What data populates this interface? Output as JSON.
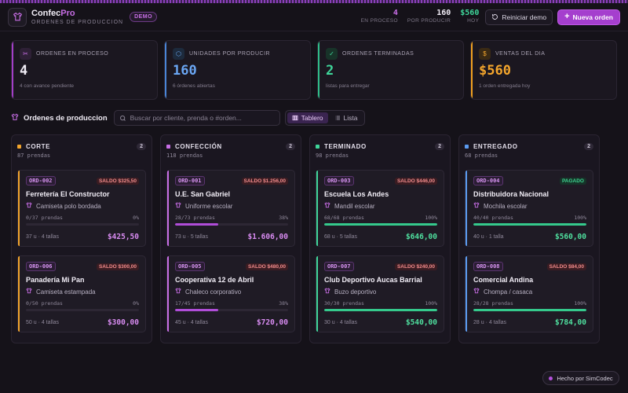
{
  "colors": {
    "accent": "#a53fce",
    "blue": "#5b9bf0",
    "green": "#3fd69a",
    "orange": "#f3a52c",
    "red": "#f08b8b"
  },
  "brand": {
    "name_a": "Confec",
    "name_b": "Pro",
    "subtitle": "ORDENES DE PRODUCCION",
    "badge": "DEMO"
  },
  "header_stats": [
    {
      "value": "4",
      "label": "EN PROCESO",
      "color": "#c86ee6"
    },
    {
      "value": "160",
      "label": "POR PRODUCIR",
      "color": "#f0ecf5"
    },
    {
      "value": "$560",
      "label": "HOY",
      "color": "#3fd69a"
    }
  ],
  "actions": {
    "reset": "Reiniciar demo",
    "new_order": "Nueva orden"
  },
  "kpis": [
    {
      "title": "ORDENES EN PROCESO",
      "value": "4",
      "sub": "4 con avance pendiente",
      "icon": "scissors-icon",
      "glyph": "✂",
      "color": "#f0ecf5",
      "iconbg": "#2e2036",
      "iconcolor": "#c86ee6"
    },
    {
      "title": "UNIDADES POR PRODUCIR",
      "value": "160",
      "sub": "6 órdenes abiertas",
      "icon": "box-icon",
      "glyph": "⬡",
      "color": "#6aa6f3",
      "iconbg": "#1d2a3c",
      "iconcolor": "#6aa6f3"
    },
    {
      "title": "ORDENES TERMINADAS",
      "value": "2",
      "sub": "listas para entregar",
      "icon": "check-circle-icon",
      "glyph": "✓",
      "color": "#3fd69a",
      "iconbg": "#183329",
      "iconcolor": "#3fd69a"
    },
    {
      "title": "VENTAS DEL DIA",
      "value": "$560",
      "sub": "1 orden entregada hoy",
      "icon": "dollar-icon",
      "glyph": "$",
      "color": "#f3a52c",
      "iconbg": "#3a2a14",
      "iconcolor": "#f3a52c"
    }
  ],
  "toolbar": {
    "title": "Ordenes de produccion",
    "search_placeholder": "Buscar por cliente, prenda o #orden...",
    "view_board": "Tablero",
    "view_list": "Lista"
  },
  "columns": [
    {
      "name": "CORTE",
      "count": "2",
      "sub": "87 prendas",
      "dot": "#f3a52c",
      "accent": "#f3a52c",
      "barc": "#9b3fc6",
      "cards": [
        {
          "ord": "ORD-002",
          "saldo": "SALDO $325,50",
          "paid": false,
          "client": "Ferretería El Constructor",
          "product": "Camiseta polo bordada",
          "progress": "0/37 prendas",
          "pct": "0%",
          "fill": 0,
          "units": "37 u · 4 tallas",
          "amount": "$425,50"
        },
        {
          "ord": "ORD-006",
          "saldo": "SALDO $300,00",
          "paid": false,
          "client": "Panadería Mi Pan",
          "product": "Camiseta estampada",
          "progress": "0/50 prendas",
          "pct": "0%",
          "fill": 0,
          "units": "50 u · 4 tallas",
          "amount": "$300,00"
        }
      ]
    },
    {
      "name": "CONFECCIÓN",
      "count": "2",
      "sub": "118 prendas",
      "dot": "#c86ee6",
      "accent": "#c86ee6",
      "barc": "#b04dd8",
      "cards": [
        {
          "ord": "ORD-001",
          "saldo": "SALDO $1.256,00",
          "paid": false,
          "client": "U.E. San Gabriel",
          "product": "Uniforme escolar",
          "progress": "28/73 prendas",
          "pct": "38%",
          "fill": 38,
          "units": "73 u · 5 tallas",
          "amount": "$1.606,00"
        },
        {
          "ord": "ORD-005",
          "saldo": "SALDO $480,00",
          "paid": false,
          "client": "Cooperativa 12 de Abril",
          "product": "Chaleco corporativo",
          "progress": "17/45 prendas",
          "pct": "38%",
          "fill": 38,
          "units": "45 u · 4 tallas",
          "amount": "$720,00"
        }
      ]
    },
    {
      "name": "TERMINADO",
      "count": "2",
      "sub": "98 prendas",
      "dot": "#3fd69a",
      "accent": "#3fd69a",
      "barc": "#35c98c",
      "cards": [
        {
          "ord": "ORD-003",
          "saldo": "SALDO $446,00",
          "paid": false,
          "client": "Escuela Los Andes",
          "product": "Mandil escolar",
          "progress": "68/68 prendas",
          "pct": "100%",
          "fill": 100,
          "units": "68 u · 5 tallas",
          "amount": "$646,00"
        },
        {
          "ord": "ORD-007",
          "saldo": "SALDO $240,00",
          "paid": false,
          "client": "Club Deportivo Aucas Barrial",
          "product": "Buzo deportivo",
          "progress": "30/30 prendas",
          "pct": "100%",
          "fill": 100,
          "units": "30 u · 4 tallas",
          "amount": "$540,00"
        }
      ]
    },
    {
      "name": "ENTREGADO",
      "count": "2",
      "sub": "68 prendas",
      "dot": "#5b9bf0",
      "accent": "#5b9bf0",
      "barc": "#35c98c",
      "cards": [
        {
          "ord": "ORD-004",
          "saldo": "PAGADO",
          "paid": true,
          "client": "Distribuidora Nacional",
          "product": "Mochila escolar",
          "progress": "40/40 prendas",
          "pct": "100%",
          "fill": 100,
          "units": "40 u · 1 talla",
          "amount": "$560,00"
        },
        {
          "ord": "ORD-008",
          "saldo": "SALDO $84,00",
          "paid": false,
          "client": "Comercial Andina",
          "product": "Chompa / casaca",
          "progress": "28/28 prendas",
          "pct": "100%",
          "fill": 100,
          "units": "28 u · 4 tallas",
          "amount": "$784,00"
        }
      ]
    }
  ],
  "footer": {
    "made_by": "Hecho por SimCodec"
  }
}
